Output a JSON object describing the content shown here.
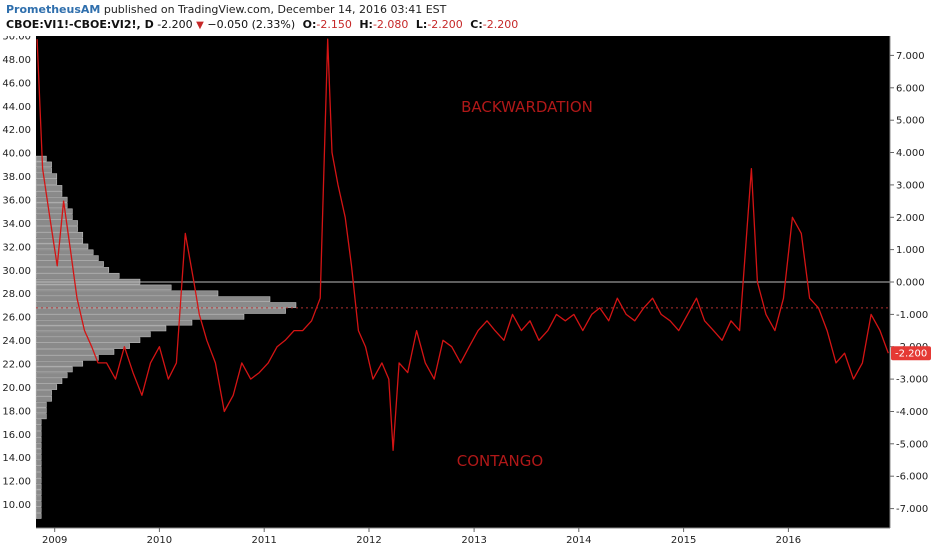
{
  "header": {
    "author": "PrometheusAM",
    "published_text": " published on TradingView.com, December 14, 2016 03:41 EST",
    "symbol": "CBOE:VI1!-CBOE:VI2!, D",
    "last": "-2.200",
    "change": "−0.050 (2.33%)",
    "o_label": "O:",
    "o_value": "-2.150",
    "h_label": "H:",
    "h_value": "-2.080",
    "l_label": "L:",
    "l_value": "-2.200",
    "c_label": "C:",
    "c_value": "-2.200"
  },
  "colors": {
    "background": "#000000",
    "line": "#d41414",
    "label_text": "#b01818",
    "price_tag": "#e53935",
    "volume_bar": "#8a8a8a",
    "axis_text": "#222222"
  },
  "chart_data": {
    "type": "line",
    "series": [
      {
        "x": [
          "2008-11-01",
          "2008-11-20",
          "2008-12-15",
          "2009-01-10",
          "2009-02-01",
          "2009-02-25",
          "2009-03-20",
          "2009-04-15",
          "2009-05-10",
          "2009-06-01",
          "2009-07-01",
          "2009-08-01",
          "2009-09-01",
          "2009-10-01",
          "2009-11-01",
          "2009-12-01",
          "2010-01-01",
          "2010-02-01",
          "2010-03-01",
          "2010-04-01",
          "2010-05-01",
          "2010-05-20",
          "2010-06-15",
          "2010-07-15",
          "2010-08-15",
          "2010-09-15",
          "2010-10-15",
          "2010-11-15",
          "2010-12-15",
          "2011-01-15",
          "2011-02-15",
          "2011-03-15",
          "2011-04-15",
          "2011-05-15",
          "2011-06-15",
          "2011-07-15",
          "2011-08-10",
          "2011-08-25",
          "2011-09-15",
          "2011-10-10",
          "2011-11-01",
          "2011-11-25",
          "2011-12-20",
          "2012-01-15",
          "2012-02-15",
          "2012-03-10",
          "2012-03-25",
          "2012-04-15",
          "2012-05-15",
          "2012-06-15",
          "2012-07-15",
          "2012-08-15",
          "2012-09-15",
          "2012-10-15",
          "2012-11-15",
          "2012-12-15",
          "2013-01-15",
          "2013-02-15",
          "2013-03-15",
          "2013-04-15",
          "2013-05-15",
          "2013-06-15",
          "2013-07-15",
          "2013-08-15",
          "2013-09-15",
          "2013-10-15",
          "2013-11-15",
          "2013-12-15",
          "2014-01-15",
          "2014-02-15",
          "2014-03-15",
          "2014-04-15",
          "2014-05-15",
          "2014-06-15",
          "2014-07-15",
          "2014-08-15",
          "2014-09-15",
          "2014-10-15",
          "2014-11-15",
          "2014-12-15",
          "2015-01-15",
          "2015-02-15",
          "2015-03-15",
          "2015-04-15",
          "2015-05-15",
          "2015-06-15",
          "2015-07-15",
          "2015-08-25",
          "2015-09-15",
          "2015-10-15",
          "2015-11-15",
          "2015-12-15",
          "2016-01-15",
          "2016-02-15",
          "2016-03-15",
          "2016-04-15",
          "2016-05-15",
          "2016-06-15",
          "2016-07-15",
          "2016-08-15",
          "2016-09-15",
          "2016-10-15",
          "2016-11-15",
          "2016-12-14"
        ],
        "y": [
          7.5,
          3.5,
          2.0,
          0.5,
          2.5,
          1.0,
          -0.5,
          -1.5,
          -2.0,
          -2.5,
          -2.5,
          -3.0,
          -2.0,
          -2.8,
          -3.5,
          -2.5,
          -2.0,
          -3.0,
          -2.5,
          1.5,
          0.0,
          -1.0,
          -1.8,
          -2.5,
          -4.0,
          -3.5,
          -2.5,
          -3.0,
          -2.8,
          -2.5,
          -2.0,
          -1.8,
          -1.5,
          -1.5,
          -1.2,
          -0.5,
          7.5,
          4.0,
          3.0,
          2.0,
          0.5,
          -1.5,
          -2.0,
          -3.0,
          -2.5,
          -3.0,
          -5.2,
          -2.5,
          -2.8,
          -1.5,
          -2.5,
          -3.0,
          -1.8,
          -2.0,
          -2.5,
          -2.0,
          -1.5,
          -1.2,
          -1.5,
          -1.8,
          -1.0,
          -1.5,
          -1.2,
          -1.8,
          -1.5,
          -1.0,
          -1.2,
          -1.0,
          -1.5,
          -1.0,
          -0.8,
          -1.2,
          -0.5,
          -1.0,
          -1.2,
          -0.8,
          -0.5,
          -1.0,
          -1.2,
          -1.5,
          -1.0,
          -0.5,
          -1.2,
          -1.5,
          -1.8,
          -1.2,
          -1.5,
          3.5,
          0.0,
          -1.0,
          -1.5,
          -0.5,
          2.0,
          1.5,
          -0.5,
          -0.8,
          -1.5,
          -2.5,
          -2.2,
          -3.0,
          -2.5,
          -1.0,
          -1.5,
          -2.2
        ]
      }
    ],
    "left_axis": {
      "ticks": [
        "50.00",
        "48.00",
        "46.00",
        "44.00",
        "42.00",
        "40.00",
        "38.00",
        "36.00",
        "34.00",
        "32.00",
        "30.00",
        "28.00",
        "26.00",
        "24.00",
        "22.00",
        "20.00",
        "18.00",
        "16.00",
        "14.00",
        "12.00",
        "10.00"
      ],
      "ylim": [
        8.0,
        50.0
      ]
    },
    "right_axis": {
      "ticks": [
        "7.000",
        "6.000",
        "5.000",
        "4.000",
        "3.000",
        "2.000",
        "1.000",
        "0.000",
        "-1.000",
        "-2.000",
        "-3.000",
        "-4.000",
        "-5.000",
        "-6.000",
        "-7.000"
      ],
      "ylim": [
        -7.6,
        7.6
      ]
    },
    "x_axis": {
      "ticks": [
        "2009",
        "2010",
        "2011",
        "2012",
        "2013",
        "2014",
        "2015",
        "2016"
      ],
      "xlim": [
        "2008-10-28",
        "2016-12-20"
      ]
    },
    "volume_profile": {
      "levels": [
        39.5,
        39.0,
        38.5,
        38.0,
        37.5,
        37.0,
        36.5,
        36.0,
        35.5,
        35.0,
        34.5,
        34.0,
        33.5,
        33.0,
        32.5,
        32.0,
        31.5,
        31.0,
        30.5,
        30.0,
        29.5,
        29.0,
        28.5,
        28.0,
        27.5,
        27.0,
        26.5,
        26.0,
        25.5,
        25.0,
        24.5,
        24.0,
        23.5,
        23.0,
        22.5,
        22.0,
        21.5,
        21.0,
        20.5,
        20.0,
        19.5,
        19.0,
        18.5,
        18.0,
        17.5,
        17.0,
        16.5,
        16.0,
        15.5,
        15.0,
        14.5,
        14.0,
        13.5,
        13.0,
        12.5,
        12.0,
        11.5,
        11.0,
        10.5,
        10.0,
        9.5,
        9.0
      ],
      "sizes": [
        2,
        3,
        3,
        4,
        4,
        5,
        5,
        6,
        6,
        7,
        7,
        8,
        8,
        9,
        9,
        10,
        11,
        12,
        13,
        14,
        16,
        20,
        26,
        35,
        45,
        50,
        48,
        40,
        30,
        25,
        22,
        20,
        18,
        15,
        12,
        9,
        7,
        6,
        5,
        4,
        3,
        3,
        2,
        2,
        2,
        1,
        1,
        1,
        1,
        1,
        1,
        1,
        1,
        1,
        1,
        1,
        1,
        1,
        1,
        1,
        1,
        1
      ]
    },
    "annotations": {
      "top": "BACKWARDATION",
      "bottom": "CONTANGO"
    },
    "price_tag": "-2.200",
    "reference_line_value": 0.0,
    "dotted_line_value": -0.8
  }
}
